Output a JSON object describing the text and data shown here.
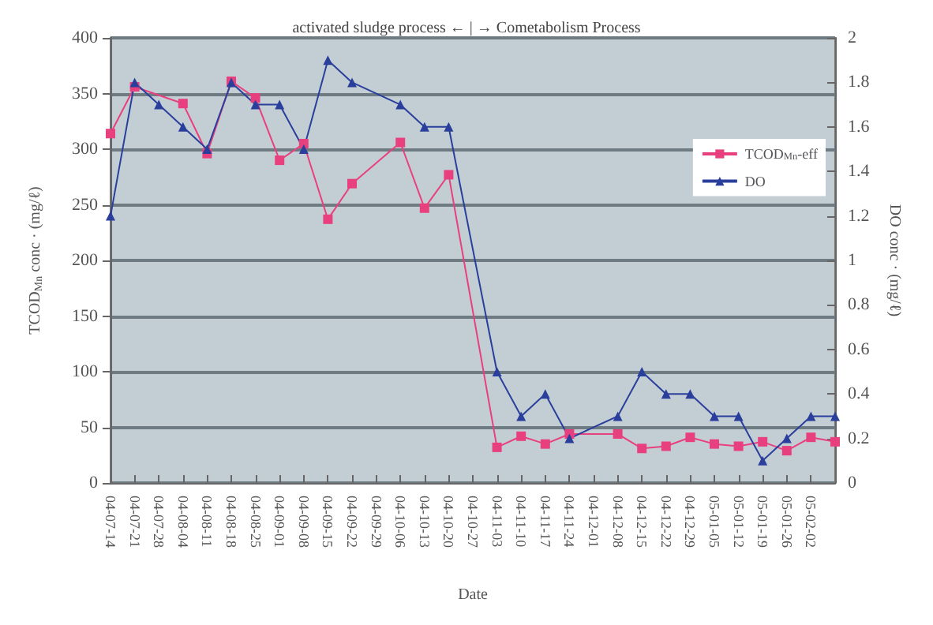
{
  "chart_data": {
    "type": "line",
    "title": "activated sludge process ← | → Cometabolism Process",
    "xlabel": "Date",
    "ylabel": "TCOD$_{Mn}$ conc · (mg/ℓ)",
    "y2label": "DO conc · (mg/ℓ)",
    "categories": [
      "04-07-14",
      "04-07-21",
      "04-07-28",
      "04-08-04",
      "04-08-11",
      "04-08-18",
      "04-08-25",
      "04-09-01",
      "04-09-08",
      "04-09-15",
      "04-09-22",
      "04-09-29",
      "04-10-06",
      "04-10-13",
      "04-10-20",
      "04-10-27",
      "04-11-03",
      "04-11-10",
      "04-11-17",
      "04-11-24",
      "04-12-01",
      "04-12-08",
      "04-12-15",
      "04-12-22",
      "04-12-29",
      "05-01-05",
      "05-01-12",
      "05-01-19",
      "05-01-26",
      "05-02-02",
      null
    ],
    "series": [
      {
        "name": "TCOD$_{Mn}$-eff",
        "color": "#e8407f",
        "marker": "square",
        "values": [
          314,
          356,
          null,
          341,
          296,
          361,
          346,
          290,
          305,
          237,
          269,
          null,
          306,
          247,
          277,
          null,
          32,
          42,
          35,
          44,
          null,
          44,
          31,
          33,
          41,
          35,
          33,
          37,
          29,
          41,
          37
        ]
      },
      {
        "name": "DO",
        "color": "#2a3f9c",
        "marker": "triangle",
        "axis": "y2",
        "values": [
          1.2,
          1.8,
          1.7,
          1.6,
          1.5,
          1.8,
          1.7,
          1.7,
          1.5,
          1.9,
          1.8,
          null,
          1.7,
          1.6,
          1.6,
          null,
          0.5,
          0.3,
          0.4,
          0.2,
          null,
          0.3,
          0.5,
          0.4,
          0.4,
          0.3,
          0.3,
          0.1,
          0.2,
          0.3,
          0.3
        ]
      }
    ],
    "ylim": [
      0,
      400
    ],
    "yticks": [
      0,
      50,
      100,
      150,
      200,
      250,
      300,
      350,
      400
    ],
    "y2lim": [
      0,
      2
    ],
    "y2ticks": [
      0,
      0.2,
      0.4,
      0.6,
      0.8,
      1,
      1.2,
      1.4,
      1.6,
      1.8,
      2
    ],
    "grid": "y",
    "legend": "top right",
    "line_style": "solid"
  }
}
